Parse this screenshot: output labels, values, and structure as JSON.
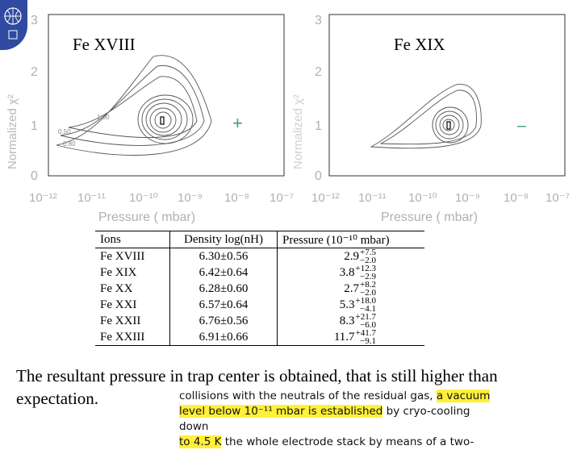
{
  "logo": {
    "icon": "institution-logo-icon",
    "color": "#2f4aa0"
  },
  "plots": {
    "ylabel_left": "Normalized χ²",
    "left": {
      "title": "Fe XVIII",
      "marker": "+",
      "marker_color": "#3aa36a",
      "y_ticks": [
        "0",
        "1",
        "2",
        "3"
      ],
      "x_ticks": [
        "10⁻¹²",
        "10⁻¹¹",
        "10⁻¹⁰",
        "10⁻⁹",
        "10⁻⁸",
        "10⁻⁷"
      ],
      "xlabel": "Pressure ( mbar)",
      "contour_labels": [
        "0.50",
        "0.80",
        "1.00"
      ]
    },
    "right": {
      "title": "Fe XIX",
      "marker": "–",
      "marker_color": "#3aa36a",
      "y_ticks": [
        "0",
        "1",
        "2",
        "3"
      ],
      "x_ticks": [
        "10⁻¹²",
        "10⁻¹¹",
        "10⁻¹⁰",
        "10⁻⁹",
        "10⁻⁸",
        "10⁻⁷"
      ],
      "xlabel": "Pressure ( mbar)"
    }
  },
  "table": {
    "headers": [
      "Ions",
      "Density log(nH)",
      "Pressure (10⁻¹⁰ mbar)"
    ],
    "rows": [
      {
        "ion": "Fe XVIII",
        "density": "6.30±0.56",
        "pressure": "2.9",
        "plus": "+7.5",
        "minus": "−2.0"
      },
      {
        "ion": "Fe XIX",
        "density": "6.42±0.64",
        "pressure": "3.8",
        "plus": "+12.3",
        "minus": "−2.9"
      },
      {
        "ion": "Fe XX",
        "density": "6.28±0.60",
        "pressure": "2.7",
        "plus": "+8.2",
        "minus": "−2.0"
      },
      {
        "ion": "Fe XXI",
        "density": "6.57±0.64",
        "pressure": "5.3",
        "plus": "+18.0",
        "minus": "−4.1"
      },
      {
        "ion": "Fe XXII",
        "density": "6.76±0.56",
        "pressure": "8.3",
        "plus": "+21.7",
        "minus": "−6.0"
      },
      {
        "ion": "Fe XXIII",
        "density": "6.91±0.66",
        "pressure": "11.7",
        "plus": "+41.7",
        "minus": "−9.1"
      }
    ]
  },
  "caption": "The resultant pressure in trap center is obtained, that is still higher than expectation.",
  "snippet": {
    "line1_plain": "collisions with the neutrals of the residual gas, ",
    "line1_hl": "a vacuum",
    "line2_hl": "level below 10⁻¹¹ mbar is established",
    "line2_plain": " by cryo-cooling down",
    "line3_hl": "to 4.5 K",
    "line3_plain": " the whole electrode stack by means of a two-",
    "highlight_color": "#fff03a"
  }
}
